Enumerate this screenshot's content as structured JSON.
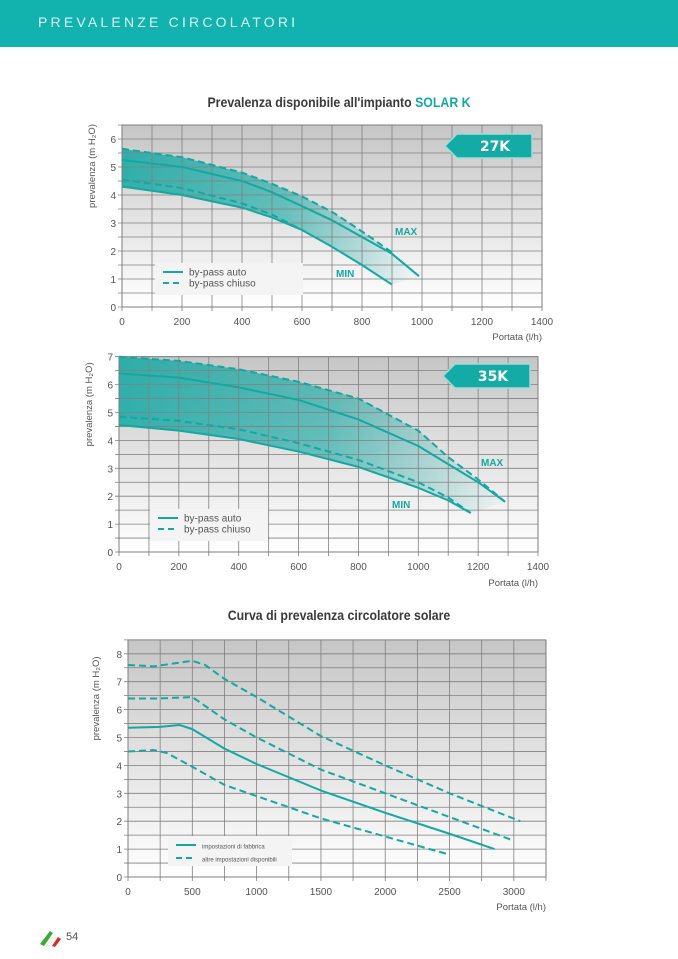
{
  "header": {
    "title": "PREVALENZE CIRCOLATORI"
  },
  "footer": {
    "page_number": "54",
    "logo_icon": "italian-flag-stripes-icon"
  },
  "colors": {
    "accent": "#12b2ae",
    "curve": "#14a8a3",
    "grid": "#7a7a7a"
  },
  "section1": {
    "title": "Prevalenza disponibile all'impianto ",
    "title_accent": "SOLAR K"
  },
  "section2": {
    "title": "Curva di prevalenza circolatore solare"
  },
  "chart_data": [
    {
      "type": "line",
      "badge": "27K",
      "xlabel": "Portata (l/h)",
      "ylabel": "prevalenza (m H₂O)",
      "xlim": [
        0,
        1400
      ],
      "ylim": [
        0,
        6.5
      ],
      "xticks": [
        0,
        200,
        400,
        600,
        800,
        1000,
        1200,
        1400
      ],
      "yticks": [
        0,
        1,
        2,
        3,
        4,
        5,
        6
      ],
      "grid": true,
      "legend": [
        {
          "label": "by-pass auto",
          "style": "solid"
        },
        {
          "label": "by-pass chiuso",
          "style": "dashed"
        }
      ],
      "annotations": [
        "MAX",
        "MIN"
      ],
      "series": [
        {
          "curve": "MAX",
          "style": "solid",
          "x": [
            0,
            200,
            400,
            500,
            600,
            700,
            800,
            900,
            990
          ],
          "y": [
            5.25,
            5.0,
            4.5,
            4.1,
            3.6,
            3.1,
            2.5,
            1.9,
            1.1
          ]
        },
        {
          "curve": "MAX",
          "style": "dashed",
          "x": [
            0,
            200,
            400,
            500,
            600,
            700,
            800,
            900
          ],
          "y": [
            5.65,
            5.35,
            4.8,
            4.4,
            3.95,
            3.4,
            2.7,
            1.95
          ]
        },
        {
          "curve": "MIN",
          "style": "solid",
          "x": [
            0,
            200,
            400,
            500,
            600,
            700,
            800,
            900
          ],
          "y": [
            4.3,
            4.0,
            3.55,
            3.2,
            2.75,
            2.15,
            1.5,
            0.8
          ]
        },
        {
          "curve": "MIN",
          "style": "dashed",
          "x": [
            0,
            200,
            400,
            500,
            600
          ],
          "y": [
            4.55,
            4.25,
            3.7,
            3.3,
            2.75
          ]
        }
      ]
    },
    {
      "type": "line",
      "badge": "35K",
      "xlabel": "Portata (l/h)",
      "ylabel": "prevalenza (m H₂O)",
      "xlim": [
        0,
        1400
      ],
      "ylim": [
        0,
        7
      ],
      "xticks": [
        0,
        200,
        400,
        600,
        800,
        1000,
        1200,
        1400
      ],
      "yticks": [
        0,
        1,
        2,
        3,
        4,
        5,
        6,
        7
      ],
      "grid": true,
      "legend": [
        {
          "label": "by-pass auto",
          "style": "solid"
        },
        {
          "label": "by-pass chiuso",
          "style": "dashed"
        }
      ],
      "annotations": [
        "MAX",
        "MIN"
      ],
      "series": [
        {
          "curve": "MAX",
          "style": "solid",
          "x": [
            0,
            200,
            400,
            600,
            800,
            1000,
            1100,
            1200,
            1290
          ],
          "y": [
            6.4,
            6.25,
            5.9,
            5.45,
            4.75,
            3.8,
            3.15,
            2.5,
            1.8
          ]
        },
        {
          "curve": "MAX",
          "style": "dashed",
          "x": [
            0,
            200,
            400,
            600,
            800,
            1000,
            1100,
            1200,
            1290
          ],
          "y": [
            7.0,
            6.85,
            6.55,
            6.1,
            5.5,
            4.35,
            3.4,
            2.6,
            1.8
          ]
        },
        {
          "curve": "MIN",
          "style": "solid",
          "x": [
            0,
            200,
            400,
            600,
            800,
            1000,
            1100,
            1175
          ],
          "y": [
            4.55,
            4.35,
            4.05,
            3.6,
            3.05,
            2.3,
            1.85,
            1.4
          ]
        },
        {
          "curve": "MIN",
          "style": "dashed",
          "x": [
            0,
            200,
            400,
            600,
            800,
            1000,
            1100,
            1175
          ],
          "y": [
            4.85,
            4.7,
            4.4,
            3.9,
            3.3,
            2.5,
            1.95,
            1.4
          ]
        }
      ]
    },
    {
      "type": "line",
      "xlabel": "Portata (l/h)",
      "ylabel": "prevalenza (m H₂O)",
      "xlim": [
        0,
        3250
      ],
      "ylim": [
        0,
        8.5
      ],
      "xticks": [
        0,
        500,
        1000,
        1500,
        2000,
        2500,
        3000
      ],
      "yticks": [
        0,
        1,
        2,
        3,
        4,
        5,
        6,
        7,
        8
      ],
      "grid": true,
      "legend": [
        {
          "label": "impostazioni di fabbrica",
          "style": "solid"
        },
        {
          "label": "altre impostazioni disponibili",
          "style": "dashed"
        }
      ],
      "series": [
        {
          "style": "solid",
          "x": [
            0,
            250,
            400,
            500,
            750,
            1000,
            1500,
            2000,
            2500,
            2850
          ],
          "y": [
            5.35,
            5.38,
            5.45,
            5.3,
            4.6,
            4.05,
            3.1,
            2.3,
            1.55,
            1.0
          ]
        },
        {
          "style": "dashed",
          "x": [
            0,
            200,
            500,
            600,
            750,
            1000,
            1500,
            2000,
            2500,
            3050
          ],
          "y": [
            7.6,
            7.55,
            7.75,
            7.6,
            7.1,
            6.45,
            5.05,
            4.0,
            3.0,
            2.0
          ]
        },
        {
          "style": "dashed",
          "x": [
            0,
            250,
            500,
            750,
            1000,
            1500,
            2000,
            2500,
            3000
          ],
          "y": [
            6.4,
            6.4,
            6.45,
            5.65,
            5.0,
            3.85,
            3.0,
            2.15,
            1.3
          ]
        },
        {
          "style": "dashed",
          "x": [
            0,
            200,
            300,
            500,
            750,
            1000,
            1500,
            2000,
            2500
          ],
          "y": [
            4.5,
            4.55,
            4.45,
            3.95,
            3.3,
            2.9,
            2.1,
            1.45,
            0.8
          ]
        }
      ]
    }
  ]
}
